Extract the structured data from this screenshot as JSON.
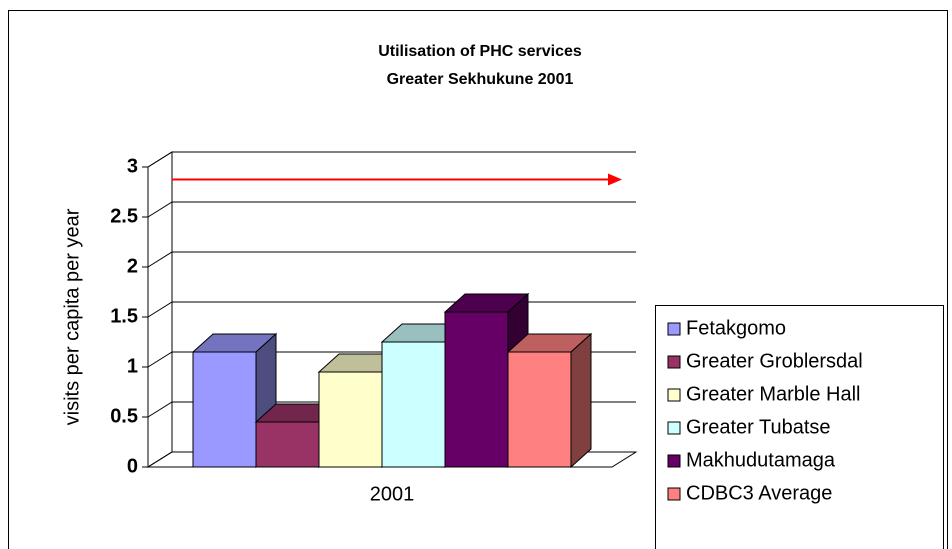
{
  "chart_data": {
    "type": "bar3d",
    "title": "Utilisation of PHC services",
    "subtitle": "Greater Sekhukune 2001",
    "y_label": "visits per capita per year",
    "categories": [
      "2001"
    ],
    "series": [
      {
        "name": "Fetakgomo",
        "color": "#9999ff",
        "values": [
          1.15
        ]
      },
      {
        "name": "Greater Groblersdal",
        "color": "#993366",
        "values": [
          0.45
        ]
      },
      {
        "name": "Greater Marble Hall",
        "color": "#ffffcc",
        "values": [
          0.95
        ]
      },
      {
        "name": "Greater Tubatse",
        "color": "#ccffff",
        "values": [
          1.25
        ]
      },
      {
        "name": "Makhudutamaga",
        "color": "#660066",
        "values": [
          1.55
        ]
      },
      {
        "name": "CDBC3 Average",
        "color": "#ff8080",
        "values": [
          1.15
        ]
      }
    ],
    "ylim": [
      0,
      3
    ],
    "yticks": [
      0,
      0.5,
      1,
      1.5,
      2,
      2.5,
      3
    ],
    "grid": true,
    "reference_value": 2.8,
    "reference_color": "#ff0000",
    "legend": "right"
  }
}
